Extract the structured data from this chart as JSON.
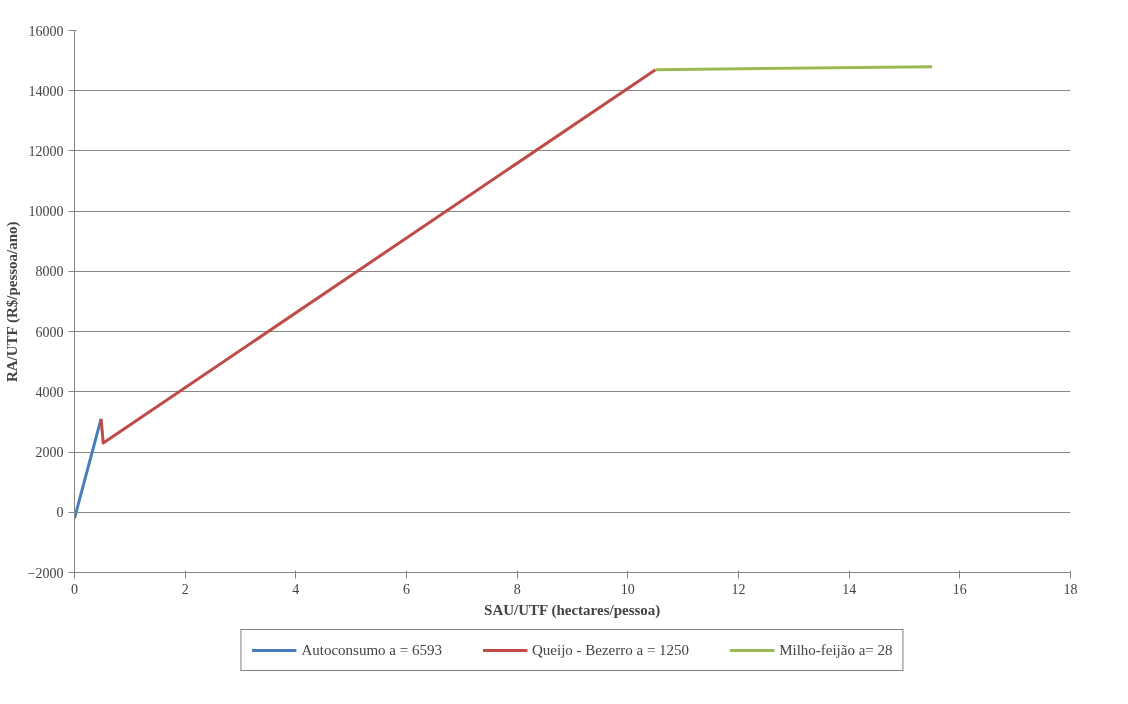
{
  "chart_data": {
    "type": "line",
    "xlabel": "SAU/UTF (hectares/pessoa)",
    "ylabel": "RA/UTF (R$/pessoa/ano)",
    "series": [
      {
        "name": "Autoconsumo a = 6593",
        "color": "#4a7ebb",
        "x": [
          0,
          0.48
        ],
        "values": [
          -200,
          3100
        ]
      },
      {
        "name": "Queijo - Bezerro a = 1250",
        "color": "#be4b48",
        "x": [
          0.48,
          0.52,
          10.5
        ],
        "values": [
          3100,
          2300,
          14700
        ]
      },
      {
        "name": "Milho-feijão a= 28",
        "color": "#98b954",
        "x": [
          10.5,
          15.5
        ],
        "values": [
          14700,
          14800
        ]
      }
    ],
    "xlim": [
      0,
      18
    ],
    "xticks": [
      0,
      2,
      4,
      6,
      8,
      10,
      12,
      14,
      16,
      18
    ],
    "ylim": [
      -2000,
      16000
    ],
    "yticks": [
      -2000,
      0,
      2000,
      4000,
      6000,
      8000,
      10000,
      12000,
      14000,
      16000
    ],
    "grid": "y",
    "legend": "bottom",
    "line_style": "solid"
  }
}
